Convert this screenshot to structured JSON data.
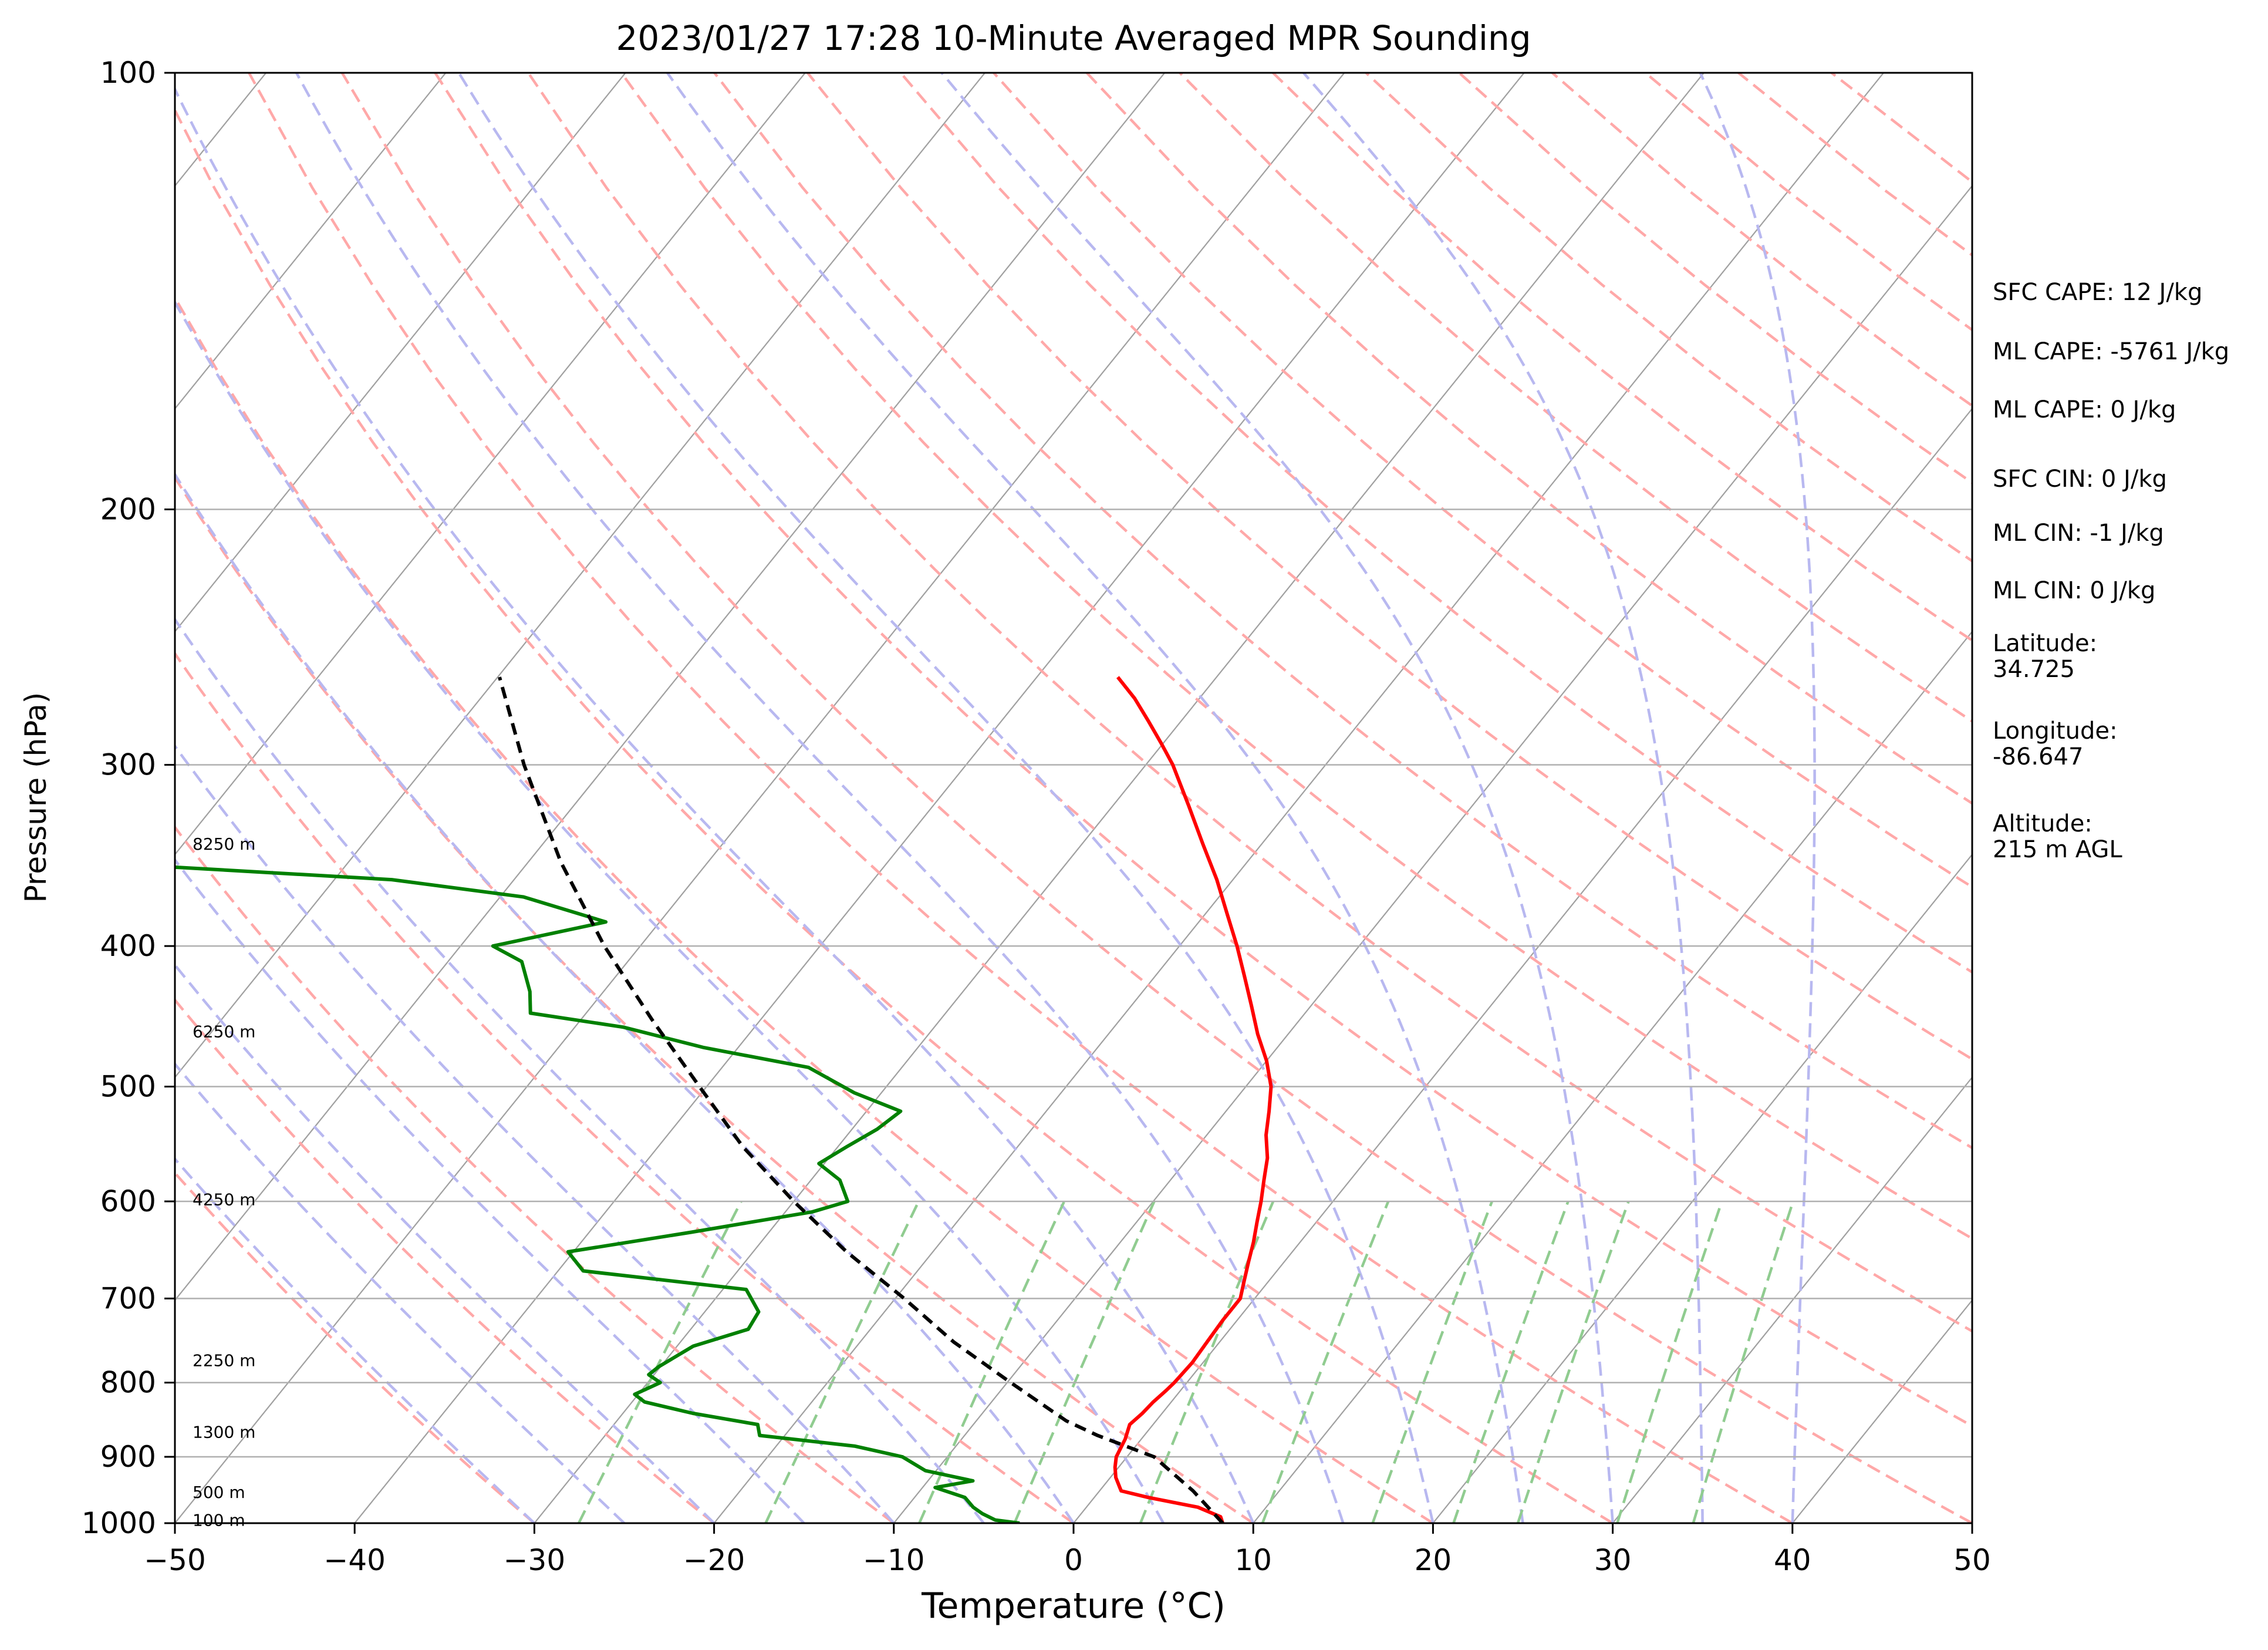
{
  "chart_data": {
    "type": "skew-t log-p sounding",
    "title": "2023/01/27 17:28 10-Minute Averaged MPR Sounding",
    "xlabel": "Temperature (°C)",
    "ylabel": "Pressure (hPa)",
    "xlim": [
      -50,
      50
    ],
    "ylim_hpa": [
      1000,
      100
    ],
    "y_scale": "log",
    "grid": true,
    "x_ticks": [
      "−50",
      "−40",
      "−30",
      "−20",
      "−10",
      "0",
      "10",
      "20",
      "30",
      "40",
      "50"
    ],
    "y_ticks": [
      "100",
      "200",
      "300",
      "400",
      "500",
      "600",
      "700",
      "800",
      "900",
      "1000"
    ],
    "height_labels": [
      {
        "text": "100 m",
        "p": 995
      },
      {
        "text": "500 m",
        "p": 952
      },
      {
        "text": "1300 m",
        "p": 865
      },
      {
        "text": "2250 m",
        "p": 772
      },
      {
        "text": "4250 m",
        "p": 598
      },
      {
        "text": "6250 m",
        "p": 458
      },
      {
        "text": "8250 m",
        "p": 340
      }
    ],
    "series": [
      {
        "key": "temperature",
        "color": "#ff0000",
        "points": [
          [
            1000,
            8.3
          ],
          [
            990,
            7.9
          ],
          [
            975,
            6.2
          ],
          [
            960,
            3.0
          ],
          [
            950,
            1.2
          ],
          [
            930,
            0.3
          ],
          [
            915,
            -0.2
          ],
          [
            900,
            -0.6
          ],
          [
            875,
            -0.9
          ],
          [
            855,
            -1.3
          ],
          [
            840,
            -1.1
          ],
          [
            825,
            -1.0
          ],
          [
            810,
            -0.8
          ],
          [
            800,
            -0.7
          ],
          [
            775,
            -0.6
          ],
          [
            750,
            -0.7
          ],
          [
            725,
            -0.8
          ],
          [
            700,
            -0.8
          ],
          [
            680,
            -1.4
          ],
          [
            660,
            -2.0
          ],
          [
            640,
            -2.6
          ],
          [
            620,
            -3.3
          ],
          [
            600,
            -4.0
          ],
          [
            580,
            -4.8
          ],
          [
            560,
            -5.6
          ],
          [
            540,
            -6.7
          ],
          [
            520,
            -7.6
          ],
          [
            500,
            -8.6
          ],
          [
            480,
            -10.0
          ],
          [
            460,
            -11.7
          ],
          [
            440,
            -13.3
          ],
          [
            420,
            -15.0
          ],
          [
            400,
            -16.8
          ],
          [
            380,
            -18.8
          ],
          [
            360,
            -20.9
          ],
          [
            340,
            -23.3
          ],
          [
            320,
            -25.8
          ],
          [
            300,
            -28.5
          ],
          [
            290,
            -30.1
          ],
          [
            280,
            -31.8
          ],
          [
            270,
            -33.6
          ],
          [
            261,
            -35.5
          ]
        ]
      },
      {
        "key": "dewpoint",
        "color": "#008000",
        "points": [
          [
            1000,
            -3.0
          ],
          [
            995,
            -4.5
          ],
          [
            985,
            -5.5
          ],
          [
            975,
            -6.3
          ],
          [
            960,
            -7.2
          ],
          [
            945,
            -9.3
          ],
          [
            935,
            -7.5
          ],
          [
            920,
            -10.6
          ],
          [
            900,
            -12.5
          ],
          [
            885,
            -15.6
          ],
          [
            870,
            -21.4
          ],
          [
            855,
            -22.0
          ],
          [
            840,
            -26.1
          ],
          [
            825,
            -29.3
          ],
          [
            815,
            -30.2
          ],
          [
            800,
            -29.3
          ],
          [
            790,
            -30.3
          ],
          [
            780,
            -30.1
          ],
          [
            770,
            -29.7
          ],
          [
            755,
            -29.1
          ],
          [
            735,
            -26.8
          ],
          [
            715,
            -27.0
          ],
          [
            690,
            -28.7
          ],
          [
            670,
            -38.6
          ],
          [
            650,
            -40.3
          ],
          [
            630,
            -34.3
          ],
          [
            610,
            -28.5
          ],
          [
            600,
            -27.0
          ],
          [
            580,
            -28.4
          ],
          [
            565,
            -30.3
          ],
          [
            550,
            -29.5
          ],
          [
            535,
            -28.6
          ],
          [
            520,
            -28.1
          ],
          [
            505,
            -31.5
          ],
          [
            485,
            -35.2
          ],
          [
            470,
            -41.9
          ],
          [
            455,
            -47.3
          ],
          [
            445,
            -53.1
          ],
          [
            430,
            -54.1
          ],
          [
            410,
            -55.9
          ],
          [
            400,
            -58.2
          ],
          [
            385,
            -53.0
          ],
          [
            370,
            -58.7
          ],
          [
            360,
            -66.8
          ],
          [
            350,
            -84.8
          ],
          [
            345,
            -86.3
          ],
          [
            340,
            -84.2
          ],
          [
            335,
            -81.7
          ],
          [
            335,
            -85.3
          ]
        ]
      },
      {
        "key": "parcel",
        "color": "#000000",
        "points": [
          [
            1000,
            8.3
          ],
          [
            950,
            5.2
          ],
          [
            900,
            1.5
          ],
          [
            870,
            -2.6
          ],
          [
            850,
            -5.0
          ],
          [
            800,
            -9.8
          ],
          [
            750,
            -14.8
          ],
          [
            700,
            -19.5
          ],
          [
            650,
            -24.8
          ],
          [
            600,
            -30.0
          ],
          [
            550,
            -35.3
          ],
          [
            500,
            -40.4
          ],
          [
            450,
            -46.0
          ],
          [
            400,
            -52.0
          ],
          [
            350,
            -58.2
          ],
          [
            300,
            -64.6
          ],
          [
            261,
            -69.9
          ]
        ]
      }
    ],
    "indices": [
      {
        "label": "SFC CAPE: 12 J/kg",
        "p": 142
      },
      {
        "label": "ML CAPE: -5761 J/kg",
        "p": 156
      },
      {
        "label": "ML CAPE: 0 J/kg",
        "p": 171
      },
      {
        "label": "SFC CIN: 0 J/kg",
        "p": 191
      },
      {
        "label": "ML CIN: -1 J/kg",
        "p": 208
      },
      {
        "label": "ML CIN: 0 J/kg",
        "p": 228
      }
    ],
    "station": [
      {
        "label": "Latitude:\n34.725",
        "p": 248
      },
      {
        "label": "Longitude:\n-86.647",
        "p": 285
      },
      {
        "label": "Altitude:\n215 m AGL",
        "p": 330
      }
    ],
    "background_colors": {
      "isotherm": "#a0a0a0",
      "dry_adiabat": "#ffa8a8",
      "moist_adiabat": "#b8b8f0",
      "mixing_ratio": "#90cc90",
      "isobar": "#b0b0b0"
    }
  }
}
